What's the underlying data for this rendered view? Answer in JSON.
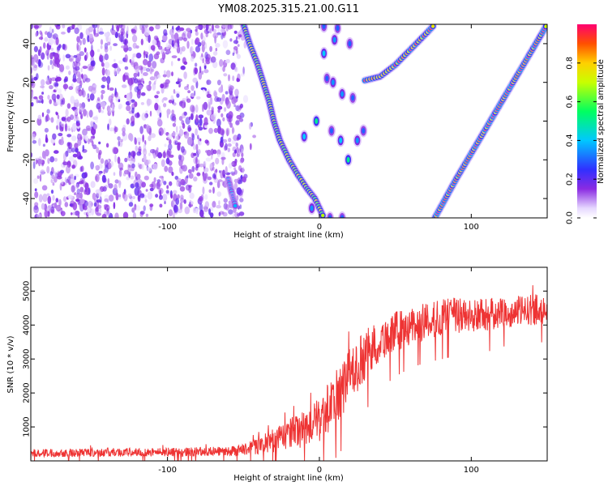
{
  "title": "YM08.2025.315.21.00.G11",
  "colors": {
    "snr_line": "#ee3333",
    "frame": "#000000"
  },
  "chart_data": [
    {
      "type": "heatmap",
      "title": "YM08.2025.315.21.00.G11",
      "xlabel": "Height of straight line (km)",
      "ylabel": "Frequency (Hz)",
      "xlim": [
        -190,
        150
      ],
      "ylim": [
        -50,
        50
      ],
      "xticks": [
        -100,
        0,
        100
      ],
      "xtick_labels": [
        "-100",
        "0",
        "100"
      ],
      "yticks": [
        -40,
        -20,
        0,
        20,
        40
      ],
      "ytick_labels": [
        "-40",
        "-20",
        "0",
        "20",
        "40"
      ],
      "colorbar": {
        "label": "Normalized spectral amplitude",
        "range": [
          0,
          1
        ],
        "ticks": [
          0.0,
          0.2,
          0.4,
          0.6,
          0.8
        ],
        "tick_labels": [
          "0.0",
          "0.2",
          "0.4",
          "0.6",
          "0.8"
        ],
        "colormap": "rainbow (violet to red)"
      },
      "noise_region": {
        "x_range": [
          -190,
          -50
        ],
        "amplitude": 0.1
      },
      "tracks": [
        {
          "name": "curved main track",
          "points": [
            [
              -50,
              50
            ],
            [
              -46,
              40
            ],
            [
              -41,
              30
            ],
            [
              -37,
              20
            ],
            [
              -33,
              10
            ],
            [
              -30,
              0
            ],
            [
              -26,
              -10
            ],
            [
              -20,
              -20
            ],
            [
              -14,
              -28
            ],
            [
              -8,
              -35
            ],
            [
              -3,
              -40
            ],
            [
              0,
              -45
            ],
            [
              3,
              -50
            ]
          ],
          "peak": 0.7
        },
        {
          "name": "steep line left",
          "points": [
            [
              -60,
              -30
            ],
            [
              -55,
              -45
            ]
          ],
          "peak": 0.35
        },
        {
          "name": "upper-mid line",
          "points": [
            [
              30,
              21
            ],
            [
              40,
              23
            ],
            [
              50,
              29
            ],
            [
              60,
              37
            ],
            [
              70,
              45
            ],
            [
              76,
              50
            ]
          ],
          "peak": 0.9
        },
        {
          "name": "right diagonal line",
          "points": [
            [
              76,
              -50
            ],
            [
              90,
              -30
            ],
            [
              105,
              -10
            ],
            [
              120,
              10
            ],
            [
              135,
              30
            ],
            [
              150,
              50
            ]
          ],
          "peak": 0.95
        }
      ],
      "blobs": [
        {
          "x": 3,
          "y": 35,
          "peak": 0.4
        },
        {
          "x": 10,
          "y": 42,
          "peak": 0.35
        },
        {
          "x": 20,
          "y": 40,
          "peak": 0.3
        },
        {
          "x": 5,
          "y": 22,
          "peak": 0.3
        },
        {
          "x": 9,
          "y": 20,
          "peak": 0.35
        },
        {
          "x": 15,
          "y": 14,
          "peak": 0.35
        },
        {
          "x": 22,
          "y": 12,
          "peak": 0.3
        },
        {
          "x": -2,
          "y": 0,
          "peak": 0.5
        },
        {
          "x": 8,
          "y": -5,
          "peak": 0.3
        },
        {
          "x": -10,
          "y": -8,
          "peak": 0.4
        },
        {
          "x": 14,
          "y": -10,
          "peak": 0.4
        },
        {
          "x": 25,
          "y": -10,
          "peak": 0.35
        },
        {
          "x": 29,
          "y": -5,
          "peak": 0.3
        },
        {
          "x": 19,
          "y": -20,
          "peak": 0.5
        },
        {
          "x": -5,
          "y": -45,
          "peak": 0.35
        },
        {
          "x": 7,
          "y": -50,
          "peak": 0.3
        },
        {
          "x": 15,
          "y": -50,
          "peak": 0.3
        },
        {
          "x": 3,
          "y": 49,
          "peak": 0.3
        },
        {
          "x": 12,
          "y": 48,
          "peak": 0.3
        }
      ]
    },
    {
      "type": "line",
      "title": "",
      "xlabel": "Height of straight line (km)",
      "ylabel": "SNR (10 * v/v)",
      "xlim": [
        -190,
        150
      ],
      "ylim": [
        0,
        5700
      ],
      "xticks": [
        -100,
        0,
        100
      ],
      "xtick_labels": [
        "-100",
        "0",
        "100"
      ],
      "yticks": [
        1000,
        2000,
        3000,
        4000,
        5000
      ],
      "ytick_labels": [
        "1000",
        "2000",
        "3000",
        "4000",
        "5000"
      ],
      "series": [
        {
          "name": "SNR",
          "color": "#ee3333",
          "envelope_x": [
            -190,
            -150,
            -100,
            -60,
            -50,
            -40,
            -30,
            -20,
            -10,
            0,
            10,
            20,
            30,
            40,
            50,
            60,
            70,
            80,
            90,
            100,
            110,
            120,
            130,
            140,
            150
          ],
          "envelope_mean": [
            230,
            250,
            260,
            280,
            330,
            450,
            600,
            800,
            950,
            1200,
            1800,
            2500,
            3100,
            3550,
            3800,
            3950,
            4100,
            4200,
            4300,
            4250,
            4300,
            4350,
            4400,
            4450,
            4500
          ],
          "envelope_spread": [
            120,
            130,
            130,
            140,
            170,
            250,
            350,
            450,
            550,
            650,
            800,
            850,
            750,
            650,
            600,
            550,
            550,
            550,
            550,
            500,
            500,
            450,
            450,
            450,
            450
          ]
        }
      ]
    }
  ]
}
